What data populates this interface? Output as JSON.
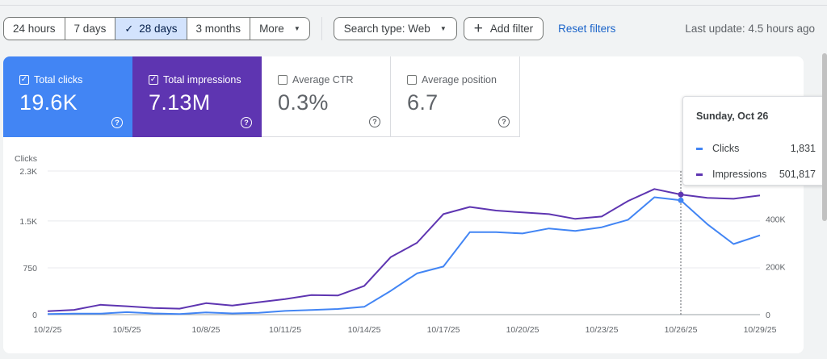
{
  "toolbar": {
    "ranges": [
      {
        "label": "24 hours",
        "selected": false
      },
      {
        "label": "7 days",
        "selected": false
      },
      {
        "label": "28 days",
        "selected": true
      },
      {
        "label": "3 months",
        "selected": false
      },
      {
        "label": "More",
        "selected": false
      }
    ],
    "search_type": "Search type: Web",
    "add_filter": "Add filter",
    "reset_filters": "Reset filters",
    "last_update": "Last update: 4.5 hours ago"
  },
  "metrics": [
    {
      "label": "Total clicks",
      "value": "19.6K",
      "checked": true,
      "color": "#4285f4"
    },
    {
      "label": "Total impressions",
      "value": "7.13M",
      "checked": true,
      "color": "#5e35b1"
    },
    {
      "label": "Average CTR",
      "value": "0.3%",
      "checked": false
    },
    {
      "label": "Average position",
      "value": "6.7",
      "checked": false
    }
  ],
  "help_glyph": "?",
  "tooltip": {
    "date": "Sunday, Oct 26",
    "rows": [
      {
        "name": "Clicks",
        "value": "1,831",
        "color": "#4285f4"
      },
      {
        "name": "Impressions",
        "value": "501,817",
        "color": "#5e35b1"
      }
    ]
  },
  "chart_data": {
    "type": "line",
    "ylabel_left": "Clicks",
    "y_left_ticks": [
      "0",
      "750",
      "1.5K",
      "2.3K"
    ],
    "y_right_ticks": [
      "0",
      "200K",
      "400K"
    ],
    "ylim_left": [
      0,
      2300
    ],
    "ylim_right": [
      0,
      600000
    ],
    "x_tick_labels": [
      "10/2/25",
      "10/5/25",
      "10/8/25",
      "10/11/25",
      "10/14/25",
      "10/17/25",
      "10/20/25",
      "10/23/25",
      "10/26/25",
      "10/29/25"
    ],
    "x": [
      "10/2/25",
      "10/3/25",
      "10/4/25",
      "10/5/25",
      "10/6/25",
      "10/7/25",
      "10/8/25",
      "10/9/25",
      "10/10/25",
      "10/11/25",
      "10/12/25",
      "10/13/25",
      "10/14/25",
      "10/15/25",
      "10/16/25",
      "10/17/25",
      "10/18/25",
      "10/19/25",
      "10/20/25",
      "10/21/25",
      "10/22/25",
      "10/23/25",
      "10/24/25",
      "10/25/25",
      "10/26/25",
      "10/27/25",
      "10/28/25",
      "10/29/25"
    ],
    "highlight_index": 24,
    "series": [
      {
        "name": "Clicks",
        "axis": "left",
        "color": "#4285f4",
        "values": [
          10,
          15,
          15,
          40,
          20,
          10,
          35,
          20,
          30,
          60,
          75,
          90,
          125,
          380,
          660,
          770,
          1320,
          1320,
          1300,
          1380,
          1340,
          1400,
          1520,
          1880,
          1831,
          1450,
          1130,
          1270
        ]
      },
      {
        "name": "Impressions",
        "axis": "right",
        "color": "#5e35b1",
        "values": [
          14000,
          20000,
          41000,
          35000,
          28000,
          25000,
          48000,
          38000,
          52000,
          65000,
          82000,
          80000,
          120000,
          240000,
          300000,
          420000,
          450000,
          435000,
          427000,
          420000,
          400000,
          410000,
          475000,
          525000,
          501817,
          488000,
          484000,
          498000
        ]
      }
    ]
  }
}
